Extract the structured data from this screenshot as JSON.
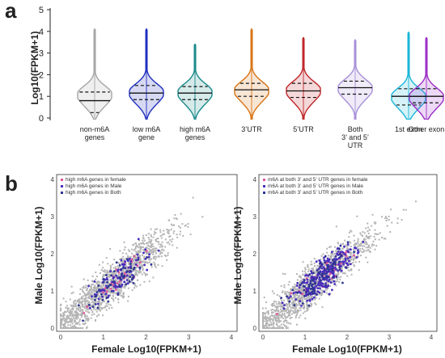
{
  "panel_a_label": "a",
  "panel_b_label": "b",
  "chart_data": [
    {
      "type": "violin",
      "ylabel": "Log10(FPKM+1)",
      "ylim": [
        0,
        5
      ],
      "yticks": [
        "0",
        "1",
        "2",
        "3",
        "4",
        "5"
      ],
      "grid": false,
      "categories": [
        {
          "label": [
            "non-m6A",
            "genes"
          ],
          "color": "#a6a6a6",
          "median": 0.8,
          "q1": 0.25,
          "q3": 1.2,
          "max": 4.1,
          "mode": 1.1
        },
        {
          "label": [
            "low m6A",
            "gene"
          ],
          "color": "#1f2fbf",
          "median": 1.15,
          "q1": 0.85,
          "q3": 1.5,
          "max": 4.1,
          "mode": 1.2
        },
        {
          "label": [
            "high m6A",
            "genes"
          ],
          "color": "#1a8a8a",
          "median": 1.15,
          "q1": 0.85,
          "q3": 1.45,
          "max": 3.4,
          "mode": 1.2
        },
        {
          "label": [
            "3’UTR"
          ],
          "color": "#d87416",
          "median": 1.3,
          "q1": 1.0,
          "q3": 1.6,
          "max": 4.1,
          "mode": 1.3
        },
        {
          "label": [
            "5’UTR"
          ],
          "color": "#c0262a",
          "median": 1.25,
          "q1": 0.95,
          "q3": 1.6,
          "max": 3.7,
          "mode": 1.3
        },
        {
          "label": [
            "Both",
            "3’ and 5’",
            "UTR"
          ],
          "color": "#a890d8",
          "median": 1.4,
          "q1": 1.1,
          "q3": 1.7,
          "max": 3.6,
          "mode": 1.4
        },
        {
          "label": [
            "1st exon"
          ],
          "color": "#19b6d8",
          "median": 1.0,
          "q1": 0.6,
          "q3": 1.35,
          "max": 3.95,
          "mode": 1.0
        },
        {
          "label": [
            "Other exon"
          ],
          "color": "#9b2ec7",
          "median": 1.0,
          "q1": 0.7,
          "q3": 1.35,
          "max": 3.7,
          "mode": 1.0
        }
      ]
    },
    {
      "type": "scatter",
      "xlabel": "Female Log10(FPKM+1)",
      "ylabel": "Male Log10(FPKM+1)",
      "xlim": [
        0,
        4
      ],
      "ylim": [
        0,
        4
      ],
      "ticks": [
        "0",
        "1",
        "2",
        "3",
        "4"
      ],
      "background_color": "#b4b4b4",
      "series": [
        {
          "name": "high m6A genes in female",
          "color": "#e0559a",
          "center": [
            1.3,
            1.3
          ],
          "count": 30
        },
        {
          "name": "high m6A genes in Male",
          "color": "#4a2dbd",
          "center": [
            1.4,
            1.4
          ],
          "count": 90
        },
        {
          "name": "high m6A genes in Both",
          "color": "#2d3590",
          "center": [
            1.3,
            1.35
          ],
          "count": 60
        }
      ]
    },
    {
      "type": "scatter",
      "xlabel": "Female Log10(FPKM+1)",
      "ylabel": "Male Log10(FPKM+1)",
      "xlim": [
        0,
        4
      ],
      "ylim": [
        0,
        4
      ],
      "ticks": [
        "0",
        "1",
        "2",
        "3",
        "4"
      ],
      "background_color": "#b4b4b4",
      "series": [
        {
          "name": "m6A  at both 3’ and 5’ UTR genes in female",
          "color": "#e0559a",
          "center": [
            1.4,
            1.4
          ],
          "count": 40
        },
        {
          "name": "m6A  at both 3’ and 5’ UTR genes in Male",
          "color": "#4a2dbd",
          "center": [
            1.45,
            1.45
          ],
          "count": 220
        },
        {
          "name": "m6A  at both 3’ and 5’ UTR genes in Both",
          "color": "#2d3590",
          "center": [
            1.4,
            1.4
          ],
          "count": 90
        }
      ]
    }
  ]
}
